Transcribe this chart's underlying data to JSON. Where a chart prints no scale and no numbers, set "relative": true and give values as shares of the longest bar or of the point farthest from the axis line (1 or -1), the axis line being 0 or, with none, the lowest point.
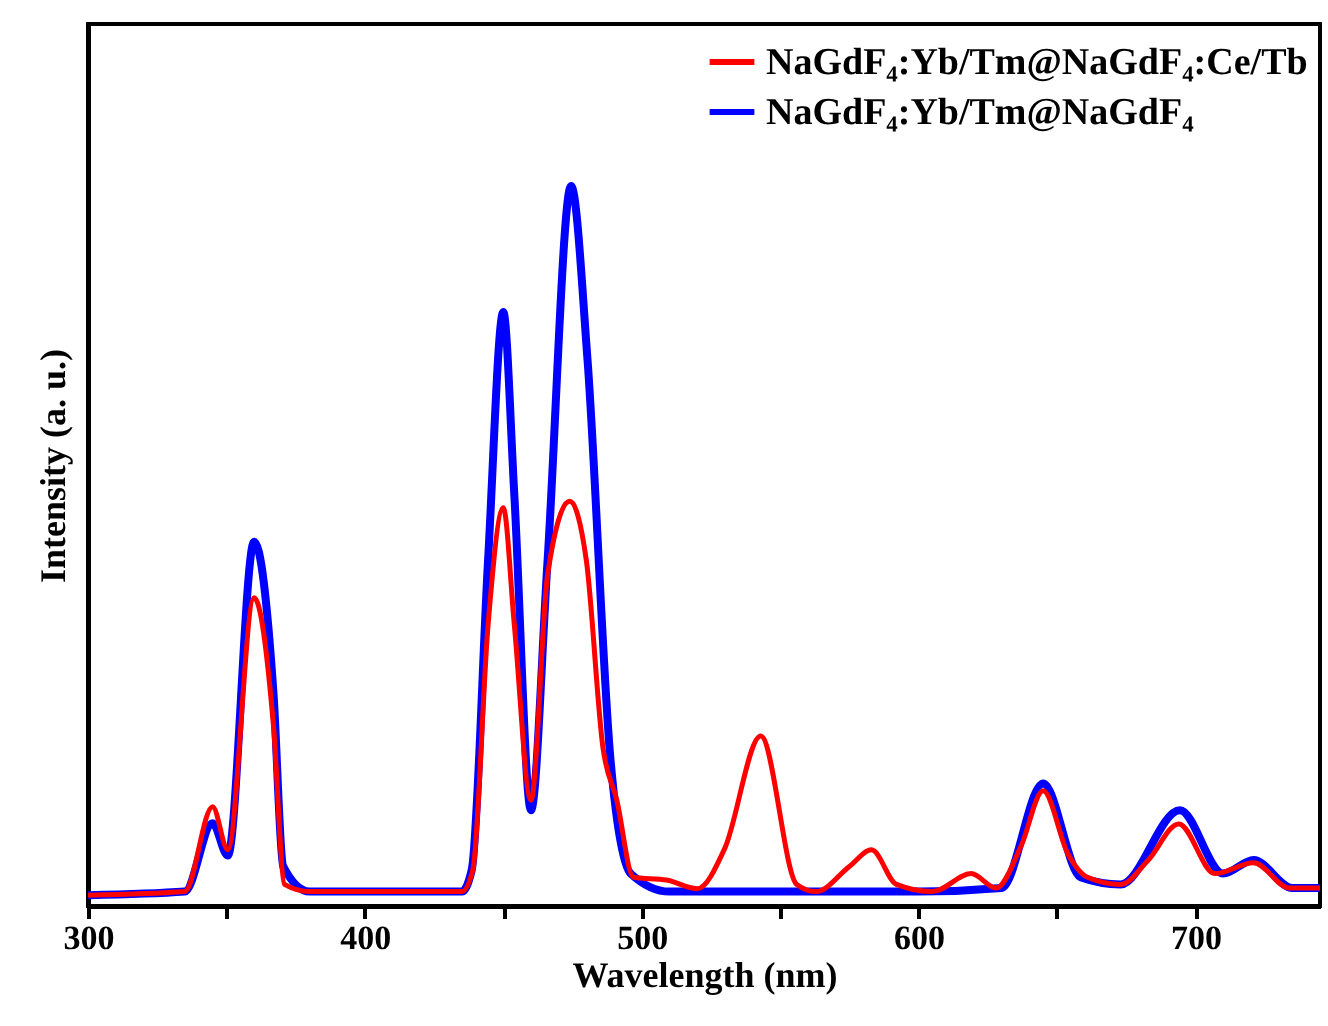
{
  "chart_data": {
    "type": "line",
    "xlabel": "Wavelength (nm)",
    "ylabel": "Intensity (a. u.)",
    "relative": true,
    "xlim": [
      300,
      745
    ],
    "xticks": [
      300,
      {
        "value": 350,
        "label": null
      },
      400,
      {
        "value": 450,
        "label": null
      },
      500,
      {
        "value": 550,
        "label": null
      },
      600,
      {
        "value": 650,
        "label": null
      },
      700
    ],
    "legend": "top right",
    "grid": false,
    "marker": "none",
    "line_style": "solid",
    "series": [
      {
        "name": "NaGdF₄:Yb/Tm@NaGdF₄:Ce/Tb",
        "color": "#ff0000",
        "x": [
          300,
          335,
          345,
          350.5,
          360,
          367,
          371,
          380,
          435,
          439,
          444.5,
          450,
          454,
          460,
          466,
          474,
          480,
          486,
          491,
          497,
          509,
          520,
          530,
          543,
          556,
          563,
          575,
          583,
          592,
          605,
          619,
          628,
          637,
          645,
          654,
          661,
          673,
          683,
          694,
          707,
          721,
          734,
          745
        ],
        "values": [
          0.015,
          0.02,
          0.138,
          0.078,
          0.428,
          0.25,
          0.03,
          0.02,
          0.02,
          0.05,
          0.39,
          0.553,
          0.39,
          0.147,
          0.46,
          0.562,
          0.48,
          0.22,
          0.147,
          0.04,
          0.036,
          0.024,
          0.08,
          0.236,
          0.03,
          0.02,
          0.055,
          0.078,
          0.03,
          0.02,
          0.045,
          0.025,
          0.083,
          0.16,
          0.072,
          0.04,
          0.03,
          0.064,
          0.114,
          0.045,
          0.06,
          0.025,
          0.025
        ]
      },
      {
        "name": "NaGdF₄:Yb/Tm@NaGdF₄",
        "color": "#0000ff",
        "x": [
          300,
          335,
          345,
          350.5,
          360,
          367,
          370.5,
          380,
          435,
          438.6,
          444.5,
          450,
          454,
          460,
          466,
          474.5,
          480.4,
          488.8,
          496,
          510,
          600,
          630,
          645,
          658.5,
          673,
          694.4,
          710,
          721,
          735,
          745
        ],
        "values": [
          0.015,
          0.02,
          0.115,
          0.07,
          0.506,
          0.295,
          0.055,
          0.02,
          0.02,
          0.05,
          0.48,
          0.825,
          0.57,
          0.133,
          0.48,
          1.0,
          0.76,
          0.2,
          0.045,
          0.02,
          0.02,
          0.025,
          0.17,
          0.04,
          0.03,
          0.133,
          0.045,
          0.064,
          0.025,
          0.025
        ]
      }
    ]
  }
}
